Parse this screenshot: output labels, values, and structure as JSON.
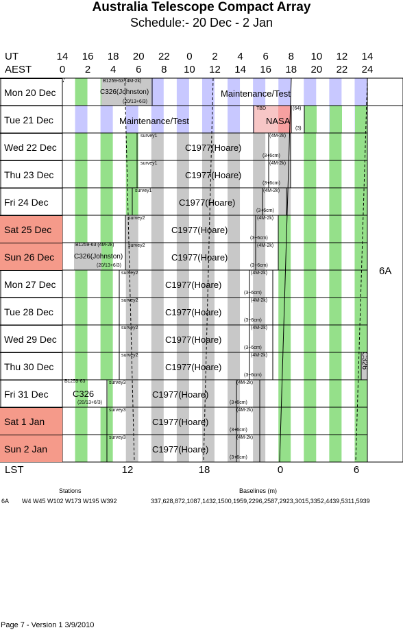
{
  "title": "Australia Telescope Compact Array",
  "subtitle": "Schedule:- 20 Dec - 2  Jan",
  "ut_label": "UT",
  "aest_label": "AEST",
  "lst_label": "LST",
  "ut_ticks": [
    "14",
    "16",
    "18",
    "20",
    "22",
    "0",
    "2",
    "4",
    "6",
    "8",
    "10",
    "12",
    "14"
  ],
  "aest_ticks": [
    "0",
    "2",
    "4",
    "6",
    "8",
    "10",
    "12",
    "14",
    "16",
    "18",
    "20",
    "22",
    "24"
  ],
  "lst_ticks": [
    "12",
    "18",
    "0",
    "6"
  ],
  "days": [
    {
      "label": "Mon  20 Dec",
      "weekend": false
    },
    {
      "label": "Tue  21 Dec",
      "weekend": false
    },
    {
      "label": "Wed  22 Dec",
      "weekend": false
    },
    {
      "label": "Thu  23 Dec",
      "weekend": false
    },
    {
      "label": "Fri   24 Dec",
      "weekend": false
    },
    {
      "label": "Sat  25 Dec",
      "weekend": true
    },
    {
      "label": "Sun  26 Dec",
      "weekend": true
    },
    {
      "label": "Mon  27 Dec",
      "weekend": false
    },
    {
      "label": "Tue  28 Dec",
      "weekend": false
    },
    {
      "label": "Wed  29 Dec",
      "weekend": false
    },
    {
      "label": "Thu  30 Dec",
      "weekend": false
    },
    {
      "label": "Fri   31 Dec",
      "weekend": false
    },
    {
      "label": "Sat    1  Jan",
      "weekend": true
    },
    {
      "label": "Sun   2  Jan",
      "weekend": true
    }
  ],
  "config": "6A",
  "labels": {
    "maint1": "Maintenance/Test",
    "maint2": "Maintenance/Test",
    "nasa": "NASA",
    "tbd": "TBD",
    "n64": "(64)",
    "n3": "(3)",
    "b1259_mon": "B1259-63  (4M-2k)",
    "c326_mon": "C326(Johnston)",
    "c326_mon_freq": "(20/13+6/3)",
    "survey1": "survey1",
    "survey2": "survey2",
    "survey3": "survey3",
    "c1977": "C1977(Hoare)",
    "m4k": "(4M-2k)",
    "c3cm": "(3+6cm)",
    "b1259_sun": "B1259-63  (4M-2k)",
    "c326_sun": "C326(Johnston)",
    "c326_sun_freq": "(20/13+6/3)",
    "b1259_fri": "B1259-63",
    "c326_fri": "C326",
    "c326_fri_freq": "(20/13+6/3)",
    "c326_vert": "C326"
  },
  "footer": {
    "stations_head": "Stations",
    "baselines_head": "Baselines (m)",
    "config": "6A",
    "stations": "W4  W45  W102  W173  W195  W392",
    "baselines": "337,628,872,1087,1432,1500,1959,2296,2587,2923,3015,3352,4439,5311,5939",
    "page": "Page 7 - Version 1  3/9/2010"
  }
}
